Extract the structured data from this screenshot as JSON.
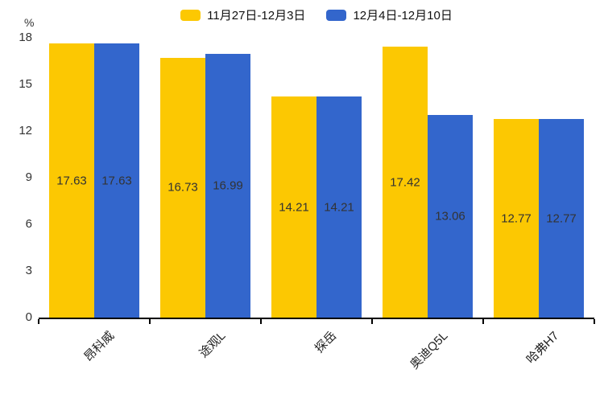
{
  "chart": {
    "background": "#ffffff",
    "axis_color": "#000000",
    "value_label_color": "#333333",
    "tick_label_color": "#333333"
  },
  "chart_data": {
    "type": "bar",
    "categories": [
      "昂科威",
      "途观L",
      "探岳",
      "奥迪Q5L",
      "哈弗H7"
    ],
    "series": [
      {
        "name": "11月27日-12月3日",
        "color": "#FCC802",
        "values": [
          17.63,
          16.73,
          14.21,
          17.42,
          12.77
        ]
      },
      {
        "name": "12月4日-12月10日",
        "color": "#3366CC",
        "values": [
          17.63,
          16.99,
          14.21,
          13.06,
          12.77
        ]
      }
    ],
    "title": "",
    "xlabel": "",
    "ylabel": "%",
    "ylim": [
      0,
      18
    ],
    "yticks": [
      18,
      15,
      12,
      9,
      6,
      3,
      0
    ],
    "grid": false,
    "legend_position": "top",
    "value_labels": "inside-center"
  }
}
